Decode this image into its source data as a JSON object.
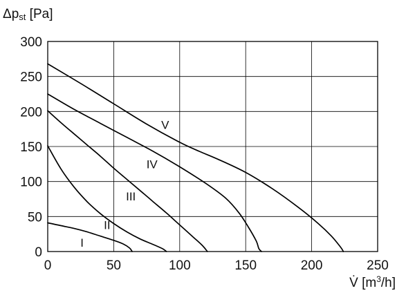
{
  "chart_data": {
    "type": "line",
    "title": "",
    "ylabel_parts": {
      "main": "Δp",
      "sub": "st",
      "unit": " [Pa]"
    },
    "xlabel_parts": {
      "main": "V̇",
      "unit_pre": " [m",
      "sup": "3",
      "unit_post": "/h]"
    },
    "xlim": [
      0,
      250
    ],
    "ylim": [
      0,
      300
    ],
    "x_ticks": [
      0,
      50,
      100,
      150,
      200,
      250
    ],
    "y_ticks": [
      0,
      50,
      100,
      150,
      200,
      250,
      300
    ],
    "grid": true,
    "legend": "none",
    "series": [
      {
        "name": "I",
        "label_at": [
          26,
          14
        ],
        "points": [
          [
            0,
            41
          ],
          [
            10,
            37
          ],
          [
            20,
            33
          ],
          [
            30,
            28
          ],
          [
            40,
            22
          ],
          [
            50,
            16
          ],
          [
            57,
            11
          ],
          [
            62,
            5
          ],
          [
            64,
            0
          ]
        ]
      },
      {
        "name": "II",
        "label_at": [
          45,
          39
        ],
        "points": [
          [
            0,
            151
          ],
          [
            10,
            118
          ],
          [
            20,
            92
          ],
          [
            30,
            71
          ],
          [
            40,
            54
          ],
          [
            50,
            40
          ],
          [
            60,
            28
          ],
          [
            70,
            18
          ],
          [
            80,
            10
          ],
          [
            87,
            4
          ],
          [
            90,
            0
          ]
        ]
      },
      {
        "name": "III",
        "label_at": [
          63,
          80
        ],
        "points": [
          [
            0,
            201
          ],
          [
            10,
            184
          ],
          [
            20,
            168
          ],
          [
            30,
            152
          ],
          [
            40,
            136
          ],
          [
            50,
            119
          ],
          [
            60,
            103
          ],
          [
            70,
            87
          ],
          [
            80,
            71
          ],
          [
            90,
            55
          ],
          [
            100,
            38
          ],
          [
            110,
            21
          ],
          [
            117,
            9
          ],
          [
            121,
            0
          ]
        ]
      },
      {
        "name": "IV",
        "label_at": [
          79,
          126
        ],
        "points": [
          [
            0,
            225
          ],
          [
            20,
            203
          ],
          [
            40,
            183
          ],
          [
            60,
            163
          ],
          [
            80,
            143
          ],
          [
            100,
            121
          ],
          [
            120,
            97
          ],
          [
            135,
            76
          ],
          [
            145,
            55
          ],
          [
            152,
            35
          ],
          [
            158,
            15
          ],
          [
            160,
            4
          ],
          [
            162,
            0
          ]
        ]
      },
      {
        "name": "V",
        "label_at": [
          89,
          182
        ],
        "points": [
          [
            0,
            268
          ],
          [
            25,
            240
          ],
          [
            50,
            211
          ],
          [
            75,
            182
          ],
          [
            100,
            156
          ],
          [
            115,
            143
          ],
          [
            130,
            131
          ],
          [
            150,
            113
          ],
          [
            170,
            90
          ],
          [
            190,
            63
          ],
          [
            205,
            40
          ],
          [
            215,
            22
          ],
          [
            222,
            6
          ],
          [
            224,
            0
          ]
        ]
      }
    ],
    "colors": {
      "line": "#000000",
      "grid": "#000000",
      "text": "#111111"
    }
  }
}
